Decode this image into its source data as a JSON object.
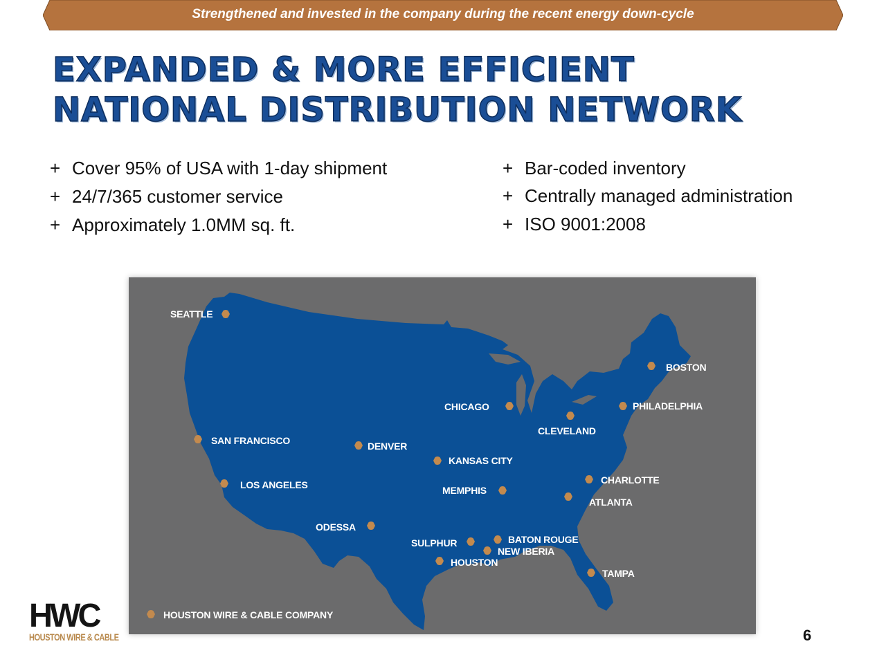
{
  "banner": {
    "text": "Strengthened and invested in the company during the recent energy down-cycle"
  },
  "title": {
    "line1": "EXPANDED & MORE EFFICIENT",
    "line2": "NATIONAL DISTRIBUTION NETWORK"
  },
  "bullets_left": [
    {
      "marker": "+",
      "text": "Cover 95% of USA with 1-day shipment"
    },
    {
      "marker": "+",
      "text": "24/7/365 customer service"
    },
    {
      "marker": "+",
      "text": "Approximately 1.0MM sq. ft."
    }
  ],
  "bullets_right": [
    {
      "marker": "+",
      "text": "Bar-coded inventory"
    },
    {
      "marker": "+",
      "text": "Centrally managed administration"
    },
    {
      "marker": "+",
      "text": "ISO 9001:2008"
    }
  ],
  "map": {
    "colors": {
      "land": "#0b5096",
      "background": "#6b6b6c",
      "marker": "#c38a4e"
    },
    "cities": [
      {
        "name": "SEATTLE",
        "icon": "hexagon-marker-icon"
      },
      {
        "name": "BOSTON",
        "icon": "hexagon-marker-icon"
      },
      {
        "name": "CHICAGO",
        "icon": "hexagon-marker-icon"
      },
      {
        "name": "PHILADELPHIA",
        "icon": "hexagon-marker-icon"
      },
      {
        "name": "CLEVELAND",
        "icon": "hexagon-marker-icon"
      },
      {
        "name": "SAN FRANCISCO",
        "icon": "hexagon-marker-icon"
      },
      {
        "name": "DENVER",
        "icon": "hexagon-marker-icon"
      },
      {
        "name": "KANSAS CITY",
        "icon": "hexagon-marker-icon"
      },
      {
        "name": "CHARLOTTE",
        "icon": "hexagon-marker-icon"
      },
      {
        "name": "LOS ANGELES",
        "icon": "hexagon-marker-icon"
      },
      {
        "name": "MEMPHIS",
        "icon": "hexagon-marker-icon"
      },
      {
        "name": "ATLANTA",
        "icon": "hexagon-marker-icon"
      },
      {
        "name": "ODESSA",
        "icon": "hexagon-marker-icon"
      },
      {
        "name": "BATON ROUGE",
        "icon": "hexagon-marker-icon"
      },
      {
        "name": "SULPHUR",
        "icon": "hexagon-marker-icon"
      },
      {
        "name": "NEW IBERIA",
        "icon": "hexagon-marker-icon"
      },
      {
        "name": "HOUSTON",
        "icon": "hexagon-marker-icon"
      },
      {
        "name": "TAMPA",
        "icon": "hexagon-marker-icon"
      }
    ],
    "legend": {
      "text": "HOUSTON WIRE & CABLE COMPANY",
      "icon": "hexagon-marker-icon"
    }
  },
  "logo": {
    "mark": "HWC",
    "subtitle": "HOUSTON WIRE & CABLE",
    "colors": {
      "mark": "#141414",
      "subtitle": "#b98a4e"
    }
  },
  "page_number": "6",
  "colors": {
    "banner": "#b5733e",
    "title": "#1a4e96"
  }
}
